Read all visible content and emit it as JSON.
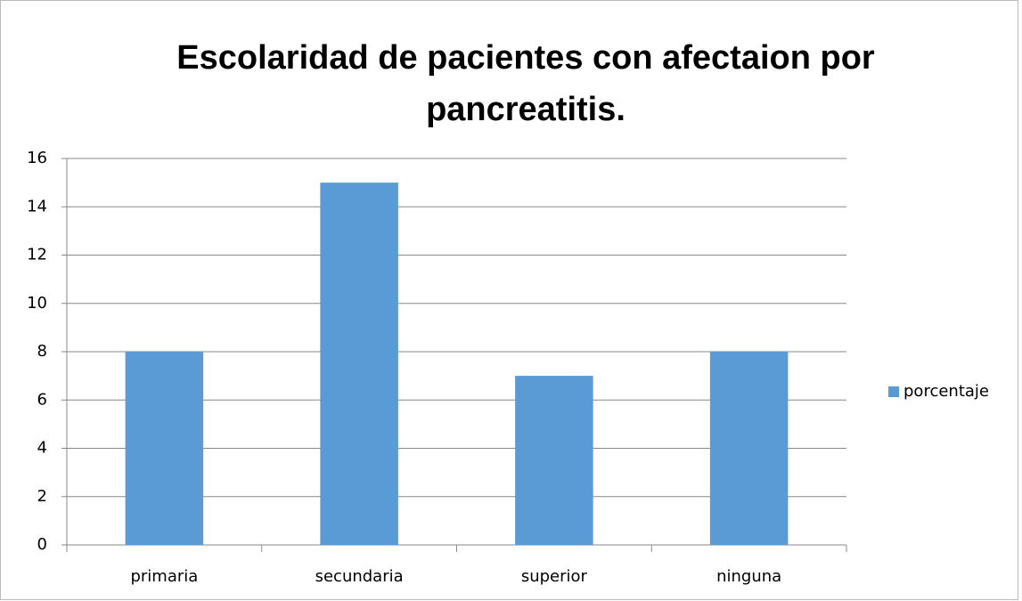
{
  "chart_data": {
    "type": "bar",
    "title": "Escolaridad de pacientes con afectaion por pancreatitis.",
    "categories": [
      "primaria",
      "secundaria",
      "superior",
      "ninguna"
    ],
    "series": [
      {
        "name": "porcentaje",
        "color": "#5b9bd5",
        "values": [
          8,
          15,
          7,
          8
        ]
      }
    ],
    "ylim": [
      0,
      16
    ],
    "yticks": [
      0,
      2,
      4,
      6,
      8,
      10,
      12,
      14,
      16
    ],
    "grid": true,
    "legend": "right"
  }
}
